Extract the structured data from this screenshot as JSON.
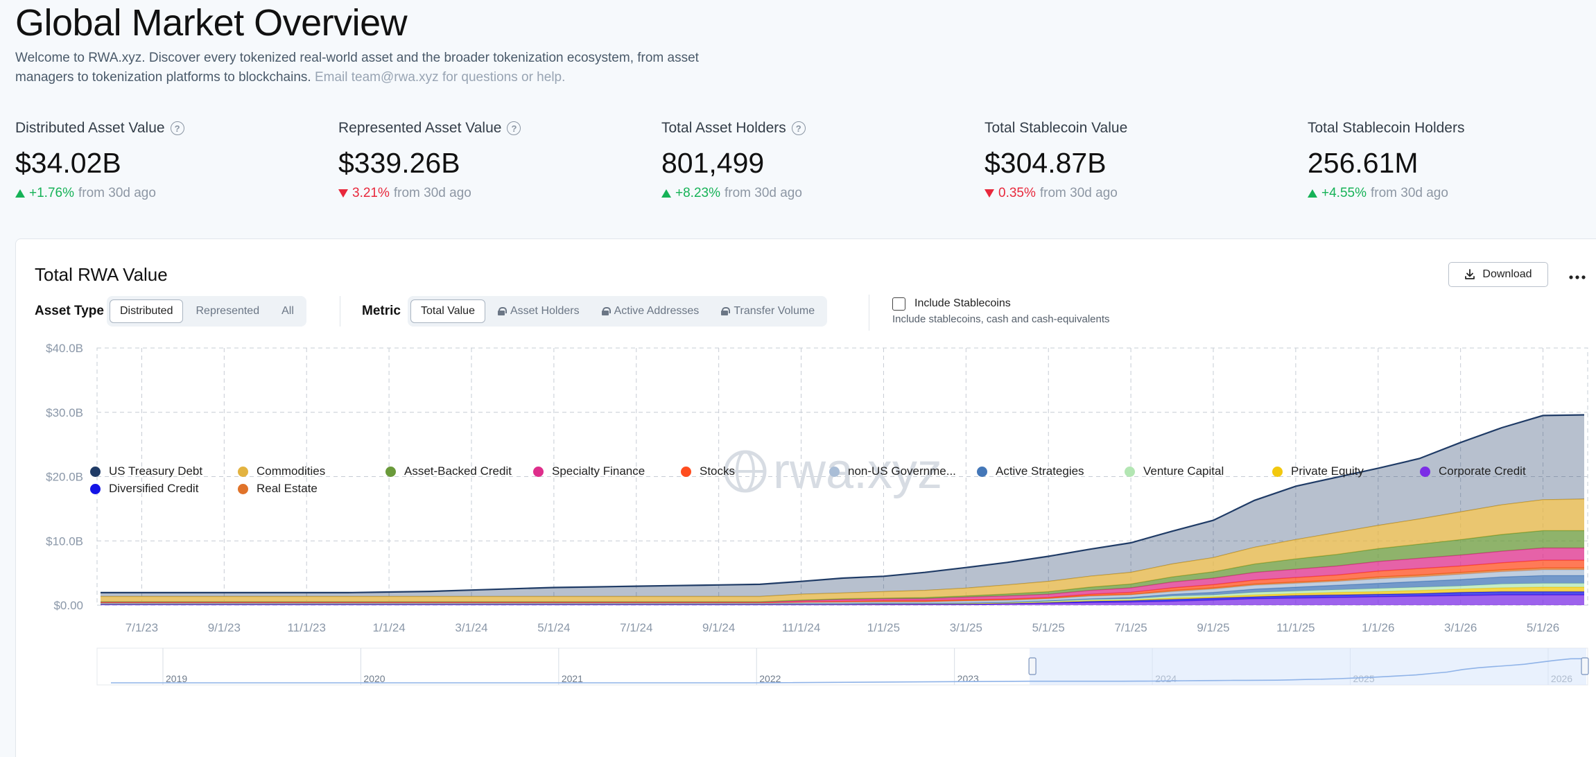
{
  "header": {
    "title": "Global Market Overview",
    "intro_line1": "Welcome to RWA.xyz. Discover every tokenized real-world asset and the broader tokenization ecosystem, from asset",
    "intro_line2_main": "managers to tokenization platforms to blockchains.",
    "intro_line2_muted": "Email team@rwa.xyz for questions or help."
  },
  "stats": [
    {
      "label": "Distributed Asset Value",
      "help": "?",
      "value": "$34.02B",
      "direction": "up",
      "change": "+1.76%",
      "suffix": "from 30d ago"
    },
    {
      "label": "Represented Asset Value",
      "help": "?",
      "value": "$339.26B",
      "direction": "down",
      "change": "3.21%",
      "suffix": "from 30d ago"
    },
    {
      "label": "Total Asset Holders",
      "help": "?",
      "value": "801,499",
      "direction": "up",
      "change": "+8.23%",
      "suffix": "from 30d ago"
    },
    {
      "label": "Total Stablecoin Value",
      "value": "$304.87B",
      "direction": "down",
      "change": "0.35%",
      "suffix": "from 30d ago"
    },
    {
      "label": "Total Stablecoin Holders",
      "value": "256.61M",
      "direction": "up",
      "change": "+4.55%",
      "suffix": "from 30d ago"
    }
  ],
  "card": {
    "title": "Total RWA Value",
    "download_label": "Download",
    "more_icon": "more-horizontal-icon",
    "asset_type_label": "Asset Type",
    "asset_types": [
      "Distributed",
      "Represented",
      "All"
    ],
    "asset_type_selected": "Distributed",
    "metric_label": "Metric",
    "metrics": [
      {
        "label": "Total Value",
        "locked": false
      },
      {
        "label": "Asset Holders",
        "locked": true
      },
      {
        "label": "Active Addresses",
        "locked": true
      },
      {
        "label": "Transfer Volume",
        "locked": true
      }
    ],
    "metric_selected": "Total Value",
    "stablecoin_toggle_label": "Include Stablecoins",
    "stablecoin_toggle_checked": false,
    "stablecoin_toggle_sub": "Include stablecoins, cash and cash-equivalents"
  },
  "colors": {
    "accent": "#1f3b66",
    "up": "#16b257",
    "down": "#e8283c"
  },
  "chart_data": {
    "type": "area",
    "stacked": true,
    "watermark": "rwa.xyz",
    "y_tick_labels": [
      "$0.00",
      "$10.0B",
      "$20.0B",
      "$30.0B",
      "$40.0B"
    ],
    "ylim": [
      0,
      40
    ],
    "y_unit": "$B",
    "x_tick_labels": [
      "7/1/23",
      "9/1/23",
      "11/1/23",
      "1/1/24",
      "3/1/24",
      "5/1/24",
      "7/1/24",
      "9/1/24",
      "11/1/24",
      "1/1/25",
      "3/1/25",
      "5/1/25",
      "7/1/25",
      "9/1/25",
      "11/1/25",
      "1/1/26",
      "3/1/26",
      "5/1/26"
    ],
    "x": [
      "6/1/23",
      "7/1/23",
      "8/1/23",
      "9/1/23",
      "10/1/23",
      "11/1/23",
      "12/1/23",
      "1/1/24",
      "2/1/24",
      "3/1/24",
      "4/1/24",
      "5/1/24",
      "6/1/24",
      "7/1/24",
      "8/1/24",
      "9/1/24",
      "10/1/24",
      "11/1/24",
      "12/1/24",
      "1/1/25",
      "2/1/25",
      "3/1/25",
      "4/1/25",
      "5/1/25",
      "6/1/25",
      "7/1/25",
      "8/1/25",
      "9/1/25",
      "10/1/25",
      "11/1/25",
      "12/1/25",
      "1/1/26",
      "2/1/26",
      "3/1/26",
      "4/1/26",
      "5/1/26",
      "6/1/26"
    ],
    "grid": true,
    "series": [
      {
        "name": "Corporate Credit",
        "color": "#7c2ee6",
        "values": [
          0.1,
          0.1,
          0.1,
          0.1,
          0.1,
          0.1,
          0.1,
          0.1,
          0.1,
          0.1,
          0.1,
          0.1,
          0.1,
          0.1,
          0.1,
          0.1,
          0.1,
          0.1,
          0.1,
          0.1,
          0.1,
          0.1,
          0.2,
          0.3,
          0.4,
          0.5,
          0.6,
          0.8,
          1.0,
          1.1,
          1.2,
          1.3,
          1.4,
          1.5,
          1.6,
          1.6,
          1.6
        ]
      },
      {
        "name": "Diversified Credit",
        "color": "#1414e6",
        "values": [
          0.05,
          0.05,
          0.05,
          0.05,
          0.05,
          0.05,
          0.05,
          0.05,
          0.05,
          0.05,
          0.05,
          0.05,
          0.05,
          0.05,
          0.05,
          0.05,
          0.05,
          0.05,
          0.05,
          0.1,
          0.1,
          0.1,
          0.1,
          0.1,
          0.2,
          0.2,
          0.3,
          0.3,
          0.3,
          0.4,
          0.4,
          0.4,
          0.4,
          0.5,
          0.5,
          0.5,
          0.5
        ]
      },
      {
        "name": "Private Equity",
        "color": "#f2c80f",
        "values": [
          0.05,
          0.05,
          0.05,
          0.05,
          0.05,
          0.05,
          0.05,
          0.05,
          0.05,
          0.05,
          0.05,
          0.05,
          0.05,
          0.05,
          0.05,
          0.05,
          0.05,
          0.05,
          0.05,
          0.05,
          0.05,
          0.05,
          0.05,
          0.1,
          0.1,
          0.1,
          0.2,
          0.2,
          0.3,
          0.3,
          0.4,
          0.4,
          0.5,
          0.5,
          0.6,
          0.7,
          0.7
        ]
      },
      {
        "name": "Venture Capital",
        "color": "#b3e6b3",
        "values": [
          0.05,
          0.05,
          0.05,
          0.05,
          0.05,
          0.05,
          0.05,
          0.05,
          0.05,
          0.05,
          0.05,
          0.05,
          0.05,
          0.05,
          0.05,
          0.05,
          0.05,
          0.05,
          0.05,
          0.05,
          0.05,
          0.1,
          0.1,
          0.1,
          0.2,
          0.2,
          0.3,
          0.3,
          0.4,
          0.4,
          0.4,
          0.5,
          0.5,
          0.5,
          0.6,
          0.6,
          0.6
        ]
      },
      {
        "name": "Active Strategies",
        "color": "#4477b8",
        "values": [
          0,
          0,
          0,
          0,
          0,
          0,
          0,
          0,
          0,
          0,
          0,
          0,
          0,
          0,
          0,
          0,
          0,
          0,
          0,
          0,
          0,
          0,
          0,
          0.1,
          0.1,
          0.2,
          0.3,
          0.4,
          0.5,
          0.6,
          0.7,
          0.8,
          0.9,
          1.0,
          1.1,
          1.2,
          1.2
        ]
      },
      {
        "name": "non-US Government Debt",
        "color": "#a9bdd6",
        "values": [
          0.1,
          0.1,
          0.1,
          0.1,
          0.1,
          0.1,
          0.1,
          0.1,
          0.1,
          0.1,
          0.1,
          0.1,
          0.1,
          0.1,
          0.1,
          0.1,
          0.1,
          0.2,
          0.2,
          0.2,
          0.2,
          0.3,
          0.3,
          0.3,
          0.4,
          0.4,
          0.4,
          0.5,
          0.6,
          0.6,
          0.6,
          0.7,
          0.7,
          0.8,
          0.8,
          0.9,
          0.9
        ]
      },
      {
        "name": "Real Estate",
        "color": "#e0732a",
        "values": [
          0.05,
          0.05,
          0.05,
          0.05,
          0.05,
          0.05,
          0.05,
          0.05,
          0.05,
          0.05,
          0.05,
          0.05,
          0.05,
          0.05,
          0.05,
          0.05,
          0.05,
          0.05,
          0.1,
          0.1,
          0.1,
          0.1,
          0.1,
          0.1,
          0.1,
          0.1,
          0.2,
          0.2,
          0.2,
          0.2,
          0.2,
          0.3,
          0.3,
          0.3,
          0.3,
          0.3,
          0.3
        ]
      },
      {
        "name": "Stocks",
        "color": "#ff4d1f",
        "values": [
          0,
          0,
          0,
          0,
          0,
          0,
          0,
          0,
          0,
          0,
          0,
          0,
          0,
          0,
          0,
          0,
          0,
          0,
          0.05,
          0.1,
          0.1,
          0.1,
          0.1,
          0.1,
          0.2,
          0.3,
          0.4,
          0.5,
          0.6,
          0.7,
          0.8,
          0.9,
          1.0,
          1.0,
          1.1,
          1.2,
          1.2
        ]
      },
      {
        "name": "Specialty Finance",
        "color": "#de2e8b",
        "values": [
          0.1,
          0.1,
          0.1,
          0.1,
          0.1,
          0.1,
          0.1,
          0.1,
          0.1,
          0.1,
          0.1,
          0.1,
          0.1,
          0.1,
          0.1,
          0.1,
          0.1,
          0.2,
          0.3,
          0.3,
          0.3,
          0.4,
          0.5,
          0.5,
          0.6,
          0.7,
          0.9,
          1.0,
          1.2,
          1.3,
          1.4,
          1.5,
          1.6,
          1.7,
          1.8,
          1.9,
          1.9
        ]
      },
      {
        "name": "Asset-Backed Credit",
        "color": "#6a9a3a",
        "values": [
          0.05,
          0.05,
          0.05,
          0.05,
          0.05,
          0.05,
          0.05,
          0.05,
          0.05,
          0.05,
          0.05,
          0.05,
          0.05,
          0.05,
          0.05,
          0.05,
          0.05,
          0.1,
          0.1,
          0.1,
          0.2,
          0.2,
          0.3,
          0.4,
          0.5,
          0.6,
          0.8,
          1.0,
          1.3,
          1.6,
          1.8,
          2.0,
          2.2,
          2.4,
          2.6,
          2.7,
          2.7
        ]
      },
      {
        "name": "Commodities",
        "color": "#e3b340",
        "values": [
          0.8,
          0.8,
          0.8,
          0.8,
          0.8,
          0.8,
          0.8,
          0.8,
          0.8,
          0.8,
          0.8,
          0.8,
          0.8,
          0.8,
          0.8,
          0.8,
          0.8,
          0.9,
          0.9,
          1.0,
          1.1,
          1.2,
          1.4,
          1.6,
          1.7,
          1.8,
          2.0,
          2.2,
          2.6,
          3.0,
          3.4,
          3.6,
          3.9,
          4.3,
          4.6,
          4.8,
          4.9
        ]
      },
      {
        "name": "US Treasury Debt",
        "color": "#1f3b66",
        "values": [
          0.6,
          0.6,
          0.6,
          0.6,
          0.6,
          0.6,
          0.6,
          0.7,
          0.8,
          1.0,
          1.2,
          1.4,
          1.5,
          1.6,
          1.7,
          1.8,
          1.9,
          2.0,
          2.3,
          2.4,
          2.8,
          3.2,
          3.5,
          3.9,
          4.2,
          4.6,
          5.1,
          5.8,
          7.3,
          8.3,
          8.6,
          8.9,
          9.4,
          10.8,
          12.0,
          13.1,
          13.1
        ]
      }
    ],
    "overview": {
      "tick_labels": [
        "2019",
        "2020",
        "2021",
        "2022",
        "2023",
        "2024",
        "2025",
        "2026"
      ],
      "selected_range": [
        "6/1/23",
        "6/1/26"
      ]
    }
  },
  "legend": [
    {
      "name": "US Treasury Debt",
      "color": "#1f3b66"
    },
    {
      "name": "Commodities",
      "color": "#e3b340"
    },
    {
      "name": "Asset-Backed Credit",
      "color": "#6a9a3a"
    },
    {
      "name": "Specialty Finance",
      "color": "#de2e8b"
    },
    {
      "name": "Stocks",
      "color": "#ff4d1f"
    },
    {
      "name": "non-US Governme...",
      "color": "#a9bdd6"
    },
    {
      "name": "Active Strategies",
      "color": "#4477b8"
    },
    {
      "name": "Venture Capital",
      "color": "#b3e6b3"
    },
    {
      "name": "Private Equity",
      "color": "#f2c80f"
    },
    {
      "name": "Corporate Credit",
      "color": "#7c2ee6"
    },
    {
      "name": "Diversified Credit",
      "color": "#1414e6"
    },
    {
      "name": "Real Estate",
      "color": "#e0732a"
    }
  ]
}
